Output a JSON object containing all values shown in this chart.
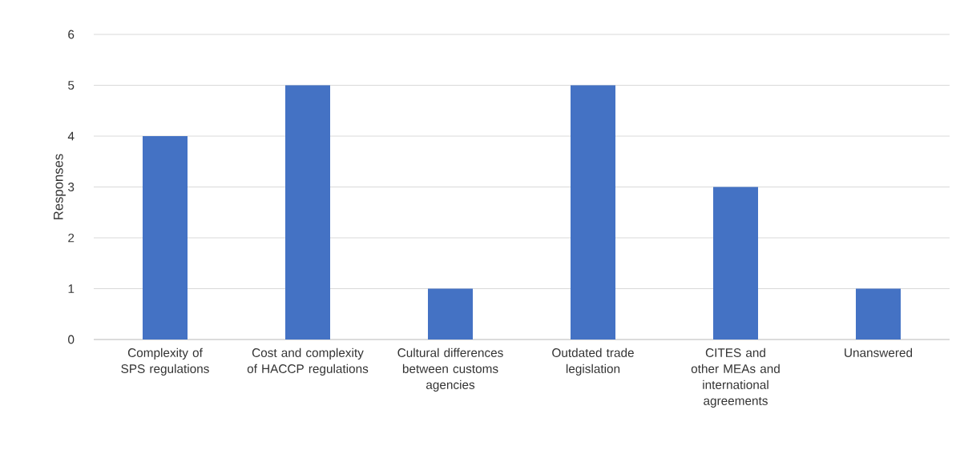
{
  "chart_data": {
    "type": "bar",
    "ylabel": "Responses",
    "categories": [
      "Complexity of SPS regulations",
      "Cost and complexity of HACCP regulations",
      "Cultural differences between customs agencies",
      "Outdated trade legislation",
      "CITES and other MEAs and international agreements",
      "Unanswered"
    ],
    "values": [
      4,
      5,
      1,
      5,
      3,
      1
    ],
    "color": "#4472c4",
    "ylim": [
      0,
      6
    ],
    "yticks": [
      0,
      1,
      2,
      3,
      4,
      5,
      6
    ],
    "grid": "y"
  }
}
